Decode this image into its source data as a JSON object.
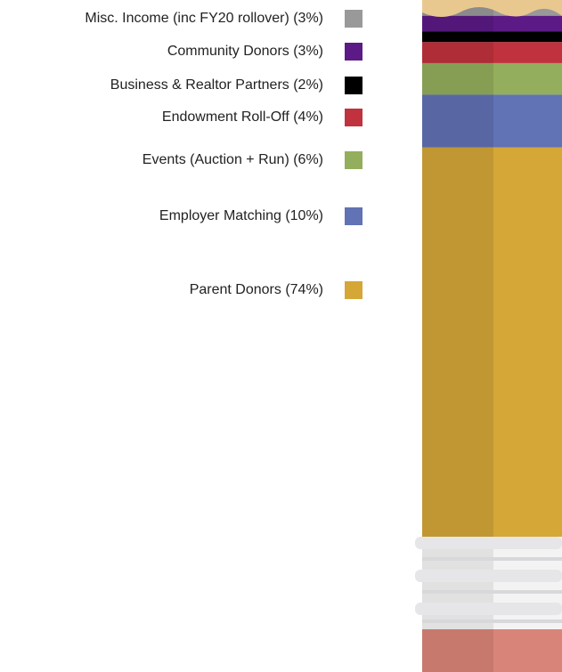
{
  "chart_data": {
    "type": "stacked-pencil",
    "series": [
      {
        "name": "Misc. Income (inc FY20 rollover) (3%)",
        "color": "#999999",
        "values": [
          3
        ]
      },
      {
        "name": "Community Donors (3%)",
        "color": "#5c1a86",
        "values": [
          3
        ]
      },
      {
        "name": "Business & Realtor Partners (2%)",
        "color": "#000000",
        "values": [
          2
        ]
      },
      {
        "name": "Endowment Roll-Off (4%)",
        "color": "#c0323d",
        "values": [
          4
        ]
      },
      {
        "name": "Events (Auction + Run) (6%)",
        "color": "#93ae5c",
        "values": [
          6
        ]
      },
      {
        "name": "Employer Matching (10%)",
        "color": "#6172b5",
        "values": [
          10
        ]
      },
      {
        "name": "Parent Donors (74%)",
        "color": "#d4a737",
        "values": [
          74
        ]
      }
    ]
  }
}
